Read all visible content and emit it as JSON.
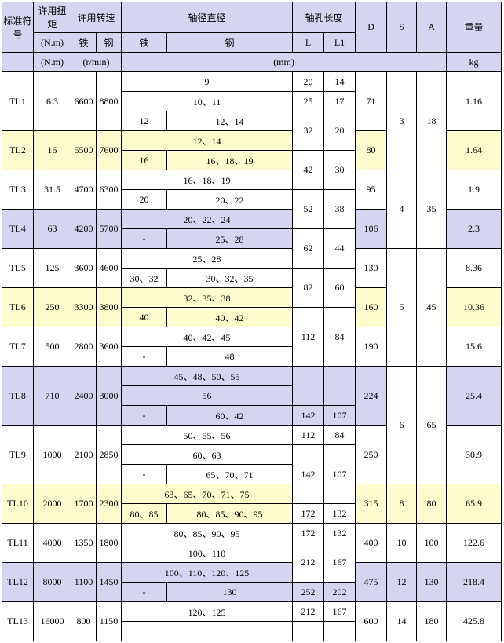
{
  "headers": {
    "id": "标准符号",
    "torque": "许用扭矩",
    "speed": "许用转速",
    "shaft_dia": "轴径直径",
    "shaft_len": "轴孔长度",
    "D": "D",
    "S": "S",
    "A": "A",
    "weight": "重量",
    "nm": "(N.m)",
    "rpm": "(r/min)",
    "iron": "铁",
    "steel": "钢",
    "L": "L",
    "L1": "L1",
    "mm": "(mm)",
    "kg": "kg"
  },
  "TL1": {
    "id": "TL1",
    "nm": "6.3",
    "fe": "6600",
    "st": "8800",
    "r1": {
      "d": "9",
      "L": "20",
      "L1": "14"
    },
    "r2": {
      "d": "10、11",
      "L": "25",
      "L1": "17"
    },
    "r3": {
      "dfe": "12",
      "dst": "12、14",
      "L": "32",
      "L1": "20"
    },
    "D": "71",
    "wt": "1.16"
  },
  "TL2": {
    "id": "TL2",
    "nm": "16",
    "fe": "5500",
    "st": "7600",
    "r1": {
      "d": "12、14"
    },
    "r2": {
      "dfe": "16",
      "dst": "16、18、19",
      "L": "42",
      "L1": "30"
    },
    "D": "80",
    "wt": "1.64"
  },
  "TL3": {
    "id": "TL3",
    "nm": "31.5",
    "fe": "4700",
    "st": "6300",
    "r1": {
      "d": "16、18、19"
    },
    "r2": {
      "dfe": "20",
      "dst": "20、22",
      "L": "52",
      "L1": "38"
    },
    "D": "95",
    "wt": "1.9"
  },
  "TL4": {
    "id": "TL4",
    "nm": "63",
    "fe": "4200",
    "st": "5700",
    "r1": {
      "d": "20、22、24"
    },
    "r2": {
      "dfe": "-",
      "dst": "25、28",
      "L": "62",
      "L1": "44"
    },
    "D": "106",
    "wt": "2.3"
  },
  "TL5": {
    "id": "TL5",
    "nm": "125",
    "fe": "3600",
    "st": "4600",
    "r1": {
      "d": "25、28"
    },
    "r2": {
      "dfe": "30、32",
      "dst": "30、32、35",
      "L": "82",
      "L1": "60"
    },
    "D": "130",
    "wt": "8.36"
  },
  "TL6": {
    "id": "TL6",
    "nm": "250",
    "fe": "3300",
    "st": "3800",
    "r1": {
      "d": "32、35、38"
    },
    "r2": {
      "dfe": "40",
      "dst": "40、42"
    },
    "D": "160",
    "wt": "10.36"
  },
  "TL7": {
    "id": "TL7",
    "nm": "500",
    "fe": "2800",
    "st": "3600",
    "r1": {
      "d": "40、42、45"
    },
    "r2": {
      "dfe": "-",
      "dst": "48",
      "L": "112",
      "L1": "84"
    },
    "D": "190",
    "wt": "15.6"
  },
  "TL8": {
    "id": "TL8",
    "nm": "710",
    "fe": "2400",
    "st": "3000",
    "r1": {
      "d": "45、48、50、55"
    },
    "r2": {
      "d": "56"
    },
    "r3": {
      "dfe": "-",
      "dst": "60、42",
      "L": "142",
      "L1": "107"
    },
    "D": "224",
    "wt": "25.4"
  },
  "TL9": {
    "id": "TL9",
    "nm": "1000",
    "fe": "2100",
    "st": "2850",
    "r1": {
      "d": "50、55、56",
      "L": "112",
      "L1": "84"
    },
    "r2": {
      "d": "60、63"
    },
    "r3": {
      "dfe": "-",
      "dst": "65、70、71",
      "L": "142",
      "L1": "107"
    },
    "D": "250",
    "wt": "30.9"
  },
  "TL10": {
    "id": "TL10",
    "nm": "2000",
    "fe": "1700",
    "st": "2300",
    "r1": {
      "d": "63、65、70、71、75"
    },
    "r2": {
      "dfe": "80、85",
      "dst": "80、85、90、95",
      "L": "172",
      "L1": "132"
    },
    "D": "315",
    "wt": "65.9"
  },
  "TL11": {
    "id": "TL11",
    "nm": "4000",
    "fe": "1350",
    "st": "1800",
    "r1": {
      "d": "80、85、90、95",
      "L": "172",
      "L1": "132"
    },
    "r2": {
      "d": "100、110",
      "L": "212",
      "L1": "167"
    },
    "D": "400",
    "wt": "122.6"
  },
  "TL12": {
    "id": "TL12",
    "nm": "8000",
    "fe": "1100",
    "st": "1450",
    "r1": {
      "d": "100、110、120、125"
    },
    "r2": {
      "dfe": "-",
      "dst": "130",
      "L": "252",
      "L1": "202"
    },
    "D": "475",
    "wt": "218.4"
  },
  "TL13": {
    "id": "TL13",
    "nm": "16000",
    "fe": "800",
    "st": "1150",
    "r1": {
      "d": "120、125",
      "L": "212",
      "L1": "167"
    },
    "D": "600",
    "wt": "425.8"
  },
  "SA": {
    "g1": {
      "S": "3",
      "A": "18"
    },
    "g2": {
      "S": "4",
      "A": "35"
    },
    "g3": {
      "S": "5",
      "A": "45"
    },
    "g4": {
      "S": "6",
      "A": "65"
    },
    "g5": {
      "S": "8",
      "A": "80"
    },
    "g6": {
      "S": "10",
      "A": "100"
    },
    "g7": {
      "S": "12",
      "A": "130"
    },
    "g8": {
      "S": "14",
      "A": "180"
    }
  }
}
